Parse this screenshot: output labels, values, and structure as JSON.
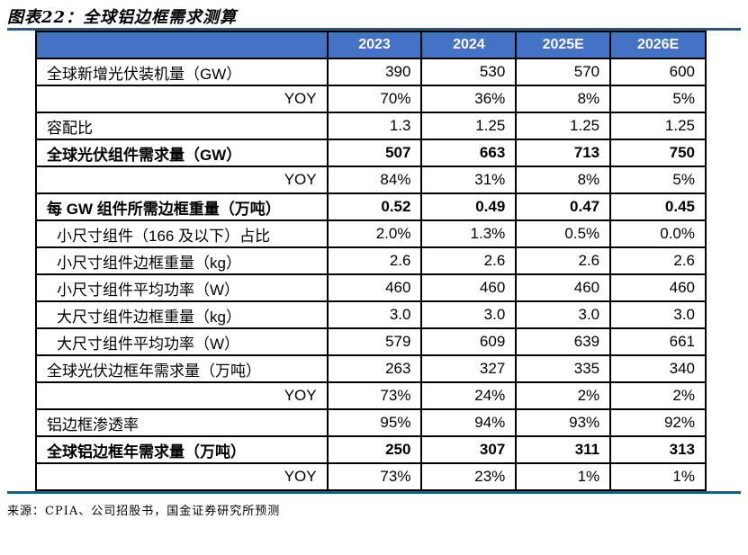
{
  "title": "图表22：全球铝边框需求测算",
  "source": "来源：CPIA、公司招股书，国金证券研究所预测",
  "colors": {
    "header_bg": "#4472C4",
    "header_text": "#FFFFFF",
    "rule": "#1F5C7C",
    "table_border": "#000000"
  },
  "chart_data": {
    "type": "table",
    "title": "图表22：全球铝边框需求测算",
    "columns": [
      "",
      "2023",
      "2024",
      "2025E",
      "2026E"
    ],
    "rows": [
      {
        "label": "全球新增光伏装机量（GW）",
        "values": [
          "390",
          "530",
          "570",
          "600"
        ],
        "bold": false,
        "align": "left"
      },
      {
        "label": "YOY",
        "values": [
          "70%",
          "36%",
          "8%",
          "5%"
        ],
        "bold": false,
        "align": "right"
      },
      {
        "label": "容配比",
        "values": [
          "1.3",
          "1.25",
          "1.25",
          "1.25"
        ],
        "bold": false,
        "align": "left"
      },
      {
        "label": "全球光伏组件需求量（GW）",
        "values": [
          "507",
          "663",
          "713",
          "750"
        ],
        "bold": true,
        "align": "left"
      },
      {
        "label": "YOY",
        "values": [
          "84%",
          "31%",
          "8%",
          "5%"
        ],
        "bold": false,
        "align": "right"
      },
      {
        "label": "每 GW 组件所需边框重量（万吨）",
        "values": [
          "0.52",
          "0.49",
          "0.47",
          "0.45"
        ],
        "bold": true,
        "align": "left"
      },
      {
        "label": "小尺寸组件（166 及以下）占比",
        "values": [
          "2.0%",
          "1.3%",
          "0.5%",
          "0.0%"
        ],
        "bold": false,
        "align": "indent"
      },
      {
        "label": "小尺寸组件边框重量（kg）",
        "values": [
          "2.6",
          "2.6",
          "2.6",
          "2.6"
        ],
        "bold": false,
        "align": "indent"
      },
      {
        "label": "小尺寸组件平均功率（W）",
        "values": [
          "460",
          "460",
          "460",
          "460"
        ],
        "bold": false,
        "align": "indent"
      },
      {
        "label": "大尺寸组件边框重量（kg）",
        "values": [
          "3.0",
          "3.0",
          "3.0",
          "3.0"
        ],
        "bold": false,
        "align": "indent"
      },
      {
        "label": "大尺寸组件平均功率（W）",
        "values": [
          "579",
          "609",
          "639",
          "661"
        ],
        "bold": false,
        "align": "indent"
      },
      {
        "label": "全球光伏边框年需求量（万吨）",
        "values": [
          "263",
          "327",
          "335",
          "340"
        ],
        "bold": false,
        "align": "left"
      },
      {
        "label": "YOY",
        "values": [
          "73%",
          "24%",
          "2%",
          "2%"
        ],
        "bold": false,
        "align": "right"
      },
      {
        "label": "铝边框渗透率",
        "values": [
          "95%",
          "94%",
          "93%",
          "92%"
        ],
        "bold": false,
        "align": "left"
      },
      {
        "label": "全球铝边框年需求量（万吨）",
        "values": [
          "250",
          "307",
          "311",
          "313"
        ],
        "bold": true,
        "align": "left"
      },
      {
        "label": "YOY",
        "values": [
          "73%",
          "23%",
          "1%",
          "1%"
        ],
        "bold": false,
        "align": "right"
      }
    ],
    "source": "来源：CPIA、公司招股书，国金证券研究所预测"
  }
}
